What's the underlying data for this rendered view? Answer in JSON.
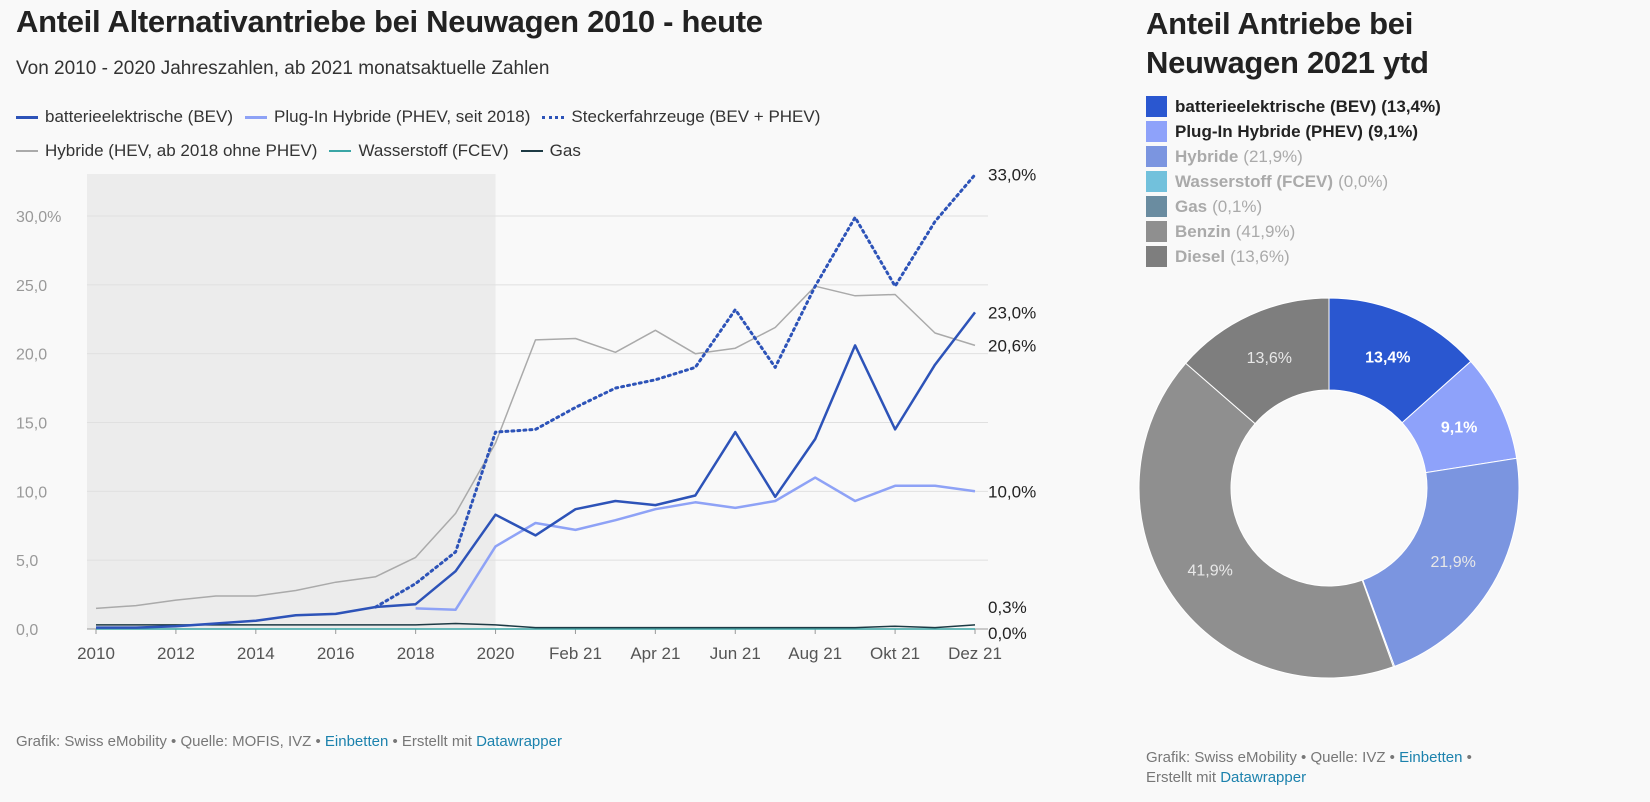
{
  "left": {
    "title": "Anteil Alternativantriebe bei Neuwagen 2010 - heute",
    "subtitle": "Von 2010 - 2020 Jahreszahlen, ab 2021 monatsaktuelle Zahlen",
    "footer": {
      "prefix": "Grafik: Swiss eMobility • Quelle: MOFIS, IVZ • ",
      "embed": "Einbetten",
      "middle": " • Erstellt mit ",
      "tool": "Datawrapper"
    }
  },
  "right": {
    "title": "Anteil Antriebe bei Neuwagen 2021 ytd",
    "footer": {
      "prefix": "Grafik: Swiss eMobility • Quelle: IVZ • ",
      "embed": "Einbetten",
      "middle": " •",
      "line2": "Erstellt mit ",
      "tool": "Datawrapper"
    }
  },
  "chart_data": [
    {
      "type": "line",
      "x": [
        "2010",
        "2011",
        "2012",
        "2013",
        "2014",
        "2015",
        "2016",
        "2017",
        "2018",
        "2019",
        "2020",
        "Jan 21",
        "Feb 21",
        "Mär 21",
        "Apr 21",
        "Mai 21",
        "Jun 21",
        "Jul 21",
        "Aug 21",
        "Sep 21",
        "Okt 21",
        "Nov 21",
        "Dez 21"
      ],
      "x_tick_labels": [
        "2010",
        "2012",
        "2014",
        "2016",
        "2018",
        "2020",
        "Feb 21",
        "Apr 21",
        "Jun 21",
        "Aug 21",
        "Okt 21",
        "Dez 21"
      ],
      "y_tick_labels": [
        "0,0",
        "5,0",
        "10,0",
        "15,0",
        "20,0",
        "25,0",
        "30,0%"
      ],
      "ylim": [
        0,
        33
      ],
      "grid": true,
      "shaded_range": [
        "2010",
        "2020"
      ],
      "series": [
        {
          "name": "batterieelektrische (BEV)",
          "color": "#2d53b8",
          "style": "solid",
          "width": 2.5,
          "values": [
            0.1,
            0.1,
            0.2,
            0.4,
            0.6,
            1.0,
            1.1,
            1.6,
            1.8,
            4.2,
            8.3,
            6.8,
            8.7,
            9.3,
            9.0,
            9.7,
            14.3,
            9.6,
            13.8,
            20.6,
            14.5,
            19.2,
            23.0
          ],
          "end_label": "23,0%"
        },
        {
          "name": "Plug-In Hybride (PHEV, seit 2018)",
          "color": "#8ea2f6",
          "style": "solid",
          "width": 2.5,
          "values": [
            null,
            null,
            null,
            null,
            null,
            null,
            null,
            null,
            1.5,
            1.4,
            6.0,
            7.7,
            7.2,
            7.9,
            8.7,
            9.2,
            8.8,
            9.3,
            11.0,
            9.3,
            10.4,
            10.4,
            10.0
          ],
          "end_label": "10,0%"
        },
        {
          "name": "Steckerfahrzeuge (BEV + PHEV)",
          "color": "#2d53b8",
          "style": "dotted",
          "width": 3,
          "values": [
            null,
            null,
            null,
            null,
            null,
            null,
            null,
            1.6,
            3.3,
            5.6,
            14.3,
            14.5,
            16.1,
            17.5,
            18.1,
            19.0,
            23.2,
            19.0,
            24.9,
            29.9,
            24.9,
            29.6,
            33.0
          ],
          "end_label": "33,0%"
        },
        {
          "name": "Hybride (HEV, ab 2018 ohne PHEV)",
          "color": "#aaaaaa",
          "style": "solid",
          "width": 1.5,
          "values": [
            1.5,
            1.7,
            2.1,
            2.4,
            2.4,
            2.8,
            3.4,
            3.8,
            5.2,
            8.4,
            13.5,
            21.0,
            21.1,
            20.1,
            21.7,
            20.0,
            20.4,
            21.9,
            24.9,
            24.2,
            24.3,
            21.5,
            20.6
          ],
          "end_label": "20,6%"
        },
        {
          "name": "Wasserstoff (FCEV)",
          "color": "#3aa6a6",
          "style": "solid",
          "width": 1.5,
          "values": [
            0.0,
            0.0,
            0.0,
            0.0,
            0.0,
            0.0,
            0.0,
            0.0,
            0.0,
            0.0,
            0.0,
            0.0,
            0.0,
            0.0,
            0.0,
            0.0,
            0.0,
            0.0,
            0.0,
            0.0,
            0.0,
            0.0,
            0.0
          ],
          "end_label": "0,0%"
        },
        {
          "name": "Gas",
          "color": "#1d3a44",
          "style": "solid",
          "width": 1.5,
          "values": [
            0.3,
            0.3,
            0.3,
            0.3,
            0.3,
            0.3,
            0.3,
            0.3,
            0.3,
            0.4,
            0.3,
            0.1,
            0.1,
            0.1,
            0.1,
            0.1,
            0.1,
            0.1,
            0.1,
            0.1,
            0.2,
            0.1,
            0.3
          ],
          "end_label": "0,3%"
        }
      ]
    },
    {
      "type": "pie",
      "donut": true,
      "slices": [
        {
          "label": "batterieelektrische (BEV)",
          "value": 13.4,
          "value_text": "13,4%",
          "color": "#2a57d0",
          "emphasized": true
        },
        {
          "label": "Plug-In Hybride (PHEV)",
          "value": 9.1,
          "value_text": "9,1%",
          "color": "#8ea2fa",
          "emphasized": true
        },
        {
          "label": "Hybride",
          "value": 21.9,
          "value_text": "21,9%",
          "color": "#7b95e0",
          "emphasized": false
        },
        {
          "label": "Wasserstoff (FCEV)",
          "value": 0.0,
          "value_text": "0,0%",
          "color": "#72c1dc",
          "emphasized": false
        },
        {
          "label": "Gas",
          "value": 0.1,
          "value_text": "0,1%",
          "color": "#6a8ca0",
          "emphasized": false
        },
        {
          "label": "Benzin",
          "value": 41.9,
          "value_text": "41,9%",
          "color": "#8f8f8f",
          "emphasized": false
        },
        {
          "label": "Diesel",
          "value": 13.6,
          "value_text": "13,6%",
          "color": "#7e7e7e",
          "emphasized": false
        }
      ]
    }
  ]
}
